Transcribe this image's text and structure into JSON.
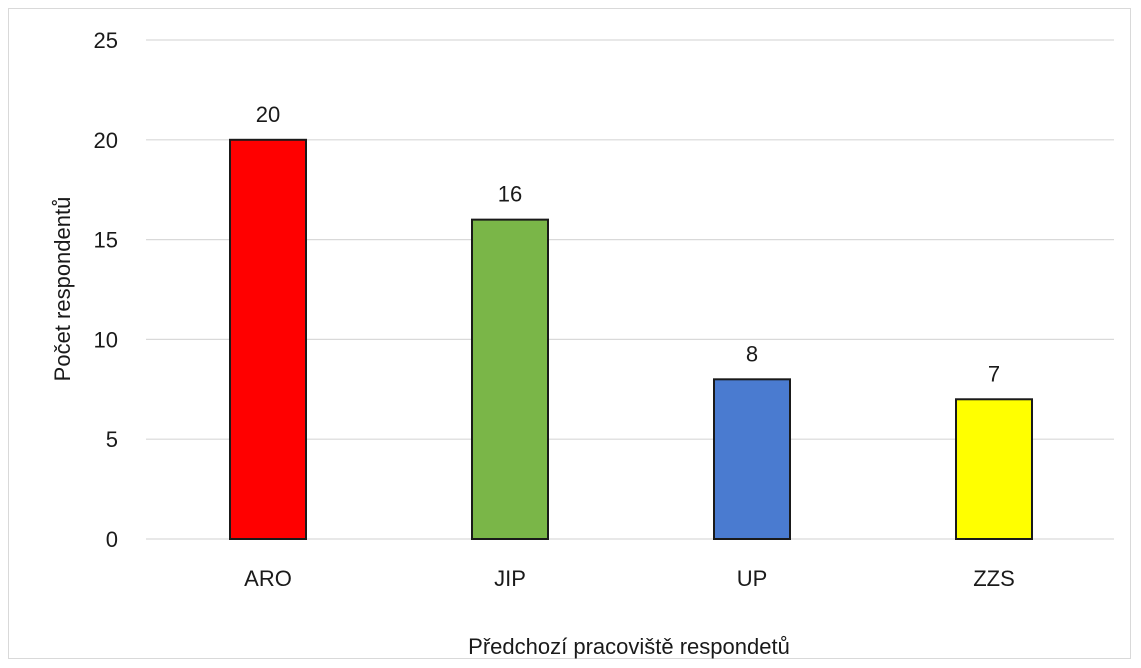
{
  "chart_data": {
    "type": "bar",
    "categories": [
      "ARO",
      "JIP",
      "UP",
      "ZZS"
    ],
    "values": [
      20,
      16,
      8,
      7
    ],
    "colors": [
      "#ff0000",
      "#7ab648",
      "#4a7bd0",
      "#ffff00"
    ],
    "xlabel": "Předchozí pracoviště respondetů",
    "ylabel": "Počet respondentů",
    "ylim": [
      0,
      25
    ],
    "yticks": [
      "0",
      "5",
      "10",
      "15",
      "20",
      "25"
    ],
    "data_labels": [
      "20",
      "16",
      "8",
      "7"
    ],
    "grid": true,
    "legend": "none"
  }
}
